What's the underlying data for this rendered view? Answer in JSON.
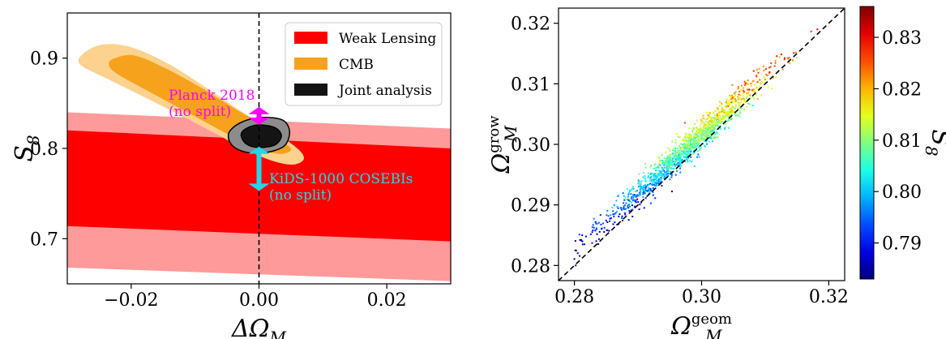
{
  "colors": {
    "wl_inner": "#ff0000",
    "wl_outer": "#ff9a9a",
    "cmb_inner": "#f7a21c",
    "cmb_outer": "#fcd28e",
    "joint_outer": "#8c8c8c",
    "joint_inner": "#141414",
    "planck": "#ff00ff",
    "kids": "#22d8e8"
  },
  "chart_data": [
    {
      "type": "area",
      "xlim": [
        -0.03,
        0.03
      ],
      "ylim": [
        0.65,
        0.95
      ],
      "xticks": [
        -0.02,
        0.0,
        0.02
      ],
      "xtick_labels": [
        "−0.02",
        "0.00",
        "0.02"
      ],
      "yticks": [
        0.7,
        0.8,
        0.9
      ],
      "ytick_labels": [
        "0.7",
        "0.8",
        "0.9"
      ],
      "xlabel": "ΔΩ",
      "xlabel_sub": "M",
      "ylabel": "S",
      "ylabel_sub": "8",
      "vline_x": 0.0,
      "legend_position": "top-right",
      "legend": [
        "Weak Lensing",
        "CMB",
        "Joint analysis"
      ],
      "weak_lensing": {
        "outer_band": {
          "x": [
            -0.03,
            0.03
          ],
          "upper": [
            0.84,
            0.822
          ],
          "lower": [
            0.668,
            0.653
          ]
        },
        "inner_band": {
          "x": [
            -0.03,
            0.03
          ],
          "upper": [
            0.82,
            0.8
          ],
          "lower": [
            0.714,
            0.697
          ]
        }
      },
      "cmb_outer": [
        [
          -0.0275,
          0.905
        ],
        [
          -0.0245,
          0.915
        ],
        [
          -0.02,
          0.912
        ],
        [
          -0.014,
          0.893
        ],
        [
          -0.008,
          0.866
        ],
        [
          -0.003,
          0.842
        ],
        [
          0.002,
          0.82
        ],
        [
          0.006,
          0.8
        ],
        [
          0.007,
          0.788
        ],
        [
          0.005,
          0.782
        ],
        [
          0.001,
          0.789
        ],
        [
          -0.004,
          0.806
        ],
        [
          -0.011,
          0.832
        ],
        [
          -0.018,
          0.857
        ],
        [
          -0.024,
          0.878
        ],
        [
          -0.028,
          0.893
        ]
      ],
      "cmb_inner": [
        [
          -0.0225,
          0.9
        ],
        [
          -0.0195,
          0.903
        ],
        [
          -0.015,
          0.89
        ],
        [
          -0.009,
          0.867
        ],
        [
          -0.004,
          0.845
        ],
        [
          0.001,
          0.824
        ],
        [
          0.004,
          0.807
        ],
        [
          0.005,
          0.798
        ],
        [
          0.003,
          0.794
        ],
        [
          -0.001,
          0.802
        ],
        [
          -0.006,
          0.82
        ],
        [
          -0.012,
          0.843
        ],
        [
          -0.018,
          0.866
        ],
        [
          -0.0225,
          0.884
        ],
        [
          -0.0235,
          0.894
        ]
      ],
      "joint_outer": [
        [
          -0.0035,
          0.826
        ],
        [
          -0.001,
          0.833
        ],
        [
          0.002,
          0.834
        ],
        [
          0.004,
          0.83
        ],
        [
          0.0048,
          0.818
        ],
        [
          0.004,
          0.803
        ],
        [
          0.0015,
          0.796
        ],
        [
          -0.0015,
          0.795
        ],
        [
          -0.004,
          0.802
        ],
        [
          -0.0048,
          0.815
        ]
      ],
      "joint_inner": [
        [
          -0.002,
          0.822
        ],
        [
          0.0,
          0.826
        ],
        [
          0.0025,
          0.823
        ],
        [
          0.0035,
          0.814
        ],
        [
          0.0025,
          0.804
        ],
        [
          0.0,
          0.801
        ],
        [
          -0.002,
          0.805
        ],
        [
          -0.0028,
          0.815
        ]
      ],
      "planck": {
        "label_line1": "Planck 2018",
        "label_line2": "(no split)",
        "x": 0.0,
        "y_low": 0.826,
        "y_high": 0.846
      },
      "kids": {
        "label_line1": "KiDS-1000 COSEBIs",
        "label_line2": "(no split)",
        "x": 0.0,
        "y_low": 0.753,
        "y_high": 0.802
      }
    },
    {
      "type": "scatter",
      "xlim": [
        0.2775,
        0.3225
      ],
      "ylim": [
        0.2775,
        0.3225
      ],
      "xticks": [
        0.28,
        0.3,
        0.32
      ],
      "xtick_labels": [
        "0.28",
        "0.30",
        "0.32"
      ],
      "yticks": [
        0.28,
        0.29,
        0.3,
        0.31,
        0.32
      ],
      "ytick_labels": [
        "0.28",
        "0.29",
        "0.30",
        "0.31",
        "0.32"
      ],
      "xlabel": "Ω",
      "xlabel_sub": "M",
      "xlabel_sup": "geom",
      "ylabel": "Ω",
      "ylabel_sub": "M",
      "ylabel_sup": "grow",
      "diagonal_line": true,
      "color_variable": "S₈",
      "colorbar": {
        "label": "S",
        "label_sub": "8",
        "range": [
          0.783,
          0.836
        ],
        "ticks": [
          0.79,
          0.8,
          0.81,
          0.82,
          0.83
        ],
        "tick_labels": [
          "0.79",
          "0.80",
          "0.81",
          "0.82",
          "0.83"
        ]
      },
      "n_points": 1400,
      "x_range": [
        0.28,
        0.321
      ],
      "slope": 0.955,
      "y_at_x030": 0.3015,
      "scatter_sd": 0.0012,
      "color_gradient_sd": 0.0013
    }
  ]
}
